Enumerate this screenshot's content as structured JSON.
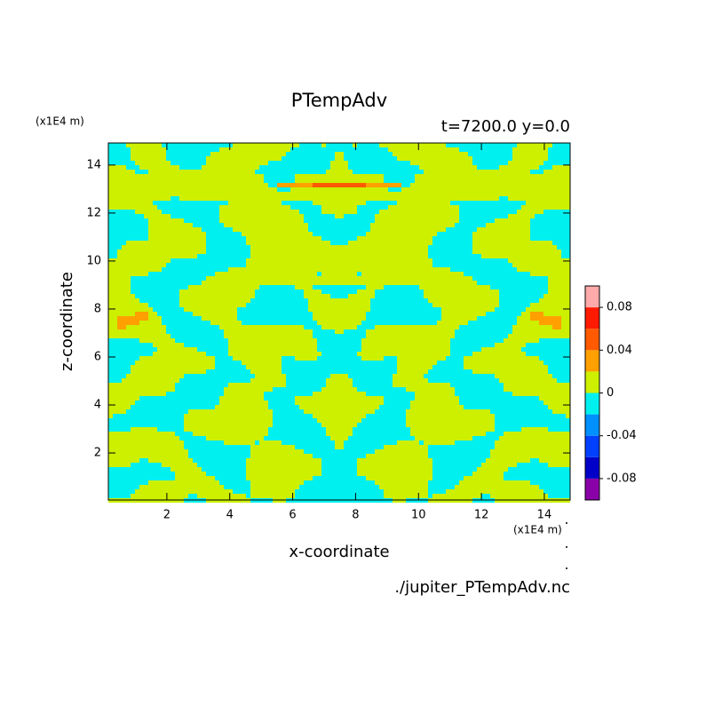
{
  "chart_data": {
    "type": "contour",
    "title": "PTempAdv",
    "subtitle": "t=7200.0 y=0.0",
    "x_label": "x-coordinate",
    "y_label": "z-coordinate",
    "x_unit": "(x1E4 m)",
    "y_unit": "(x1E4 m)",
    "source": "./jupiter_PTempAdv.nc",
    "xlim": [
      0.14,
      14.82
    ],
    "ylim": [
      0.04,
      14.92
    ],
    "xticks": [
      2,
      4,
      6,
      8,
      10,
      12,
      14
    ],
    "yticks": [
      2,
      4,
      6,
      8,
      10,
      12,
      14
    ],
    "colorbar": {
      "levels": [
        -0.1,
        -0.08,
        -0.06,
        -0.04,
        -0.02,
        0,
        0.02,
        0.04,
        0.06,
        0.08,
        0.1
      ],
      "colors": [
        "#8a00a8",
        "#0000c8",
        "#0040ff",
        "#0090ff",
        "#00f0f0",
        "#ccf000",
        "#ffa000",
        "#ff5a00",
        "#ff1a00",
        "#ffaaaa"
      ],
      "ticks": [
        -0.08,
        -0.04,
        0,
        0.04,
        0.08
      ]
    }
  }
}
